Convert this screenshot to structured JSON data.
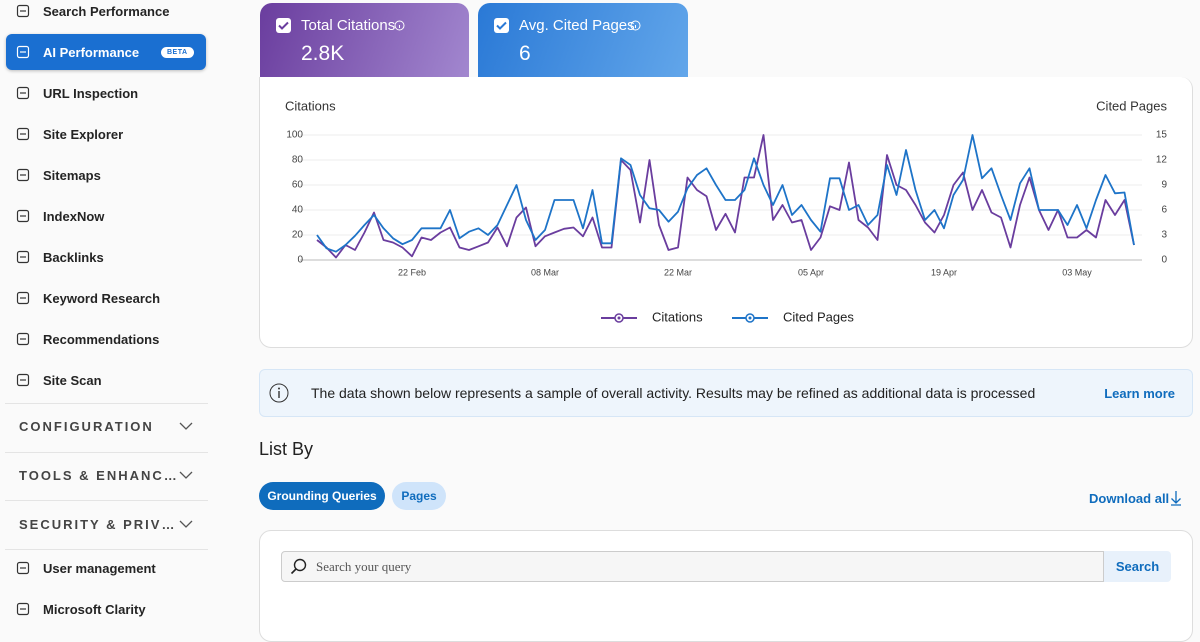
{
  "nav": {
    "items": [
      {
        "label": "Search Performance"
      },
      {
        "label": "AI Performance",
        "badge": "BETA",
        "active": true
      },
      {
        "label": "URL Inspection"
      },
      {
        "label": "Site Explorer"
      },
      {
        "label": "Sitemaps"
      },
      {
        "label": "IndexNow"
      },
      {
        "label": "Backlinks"
      },
      {
        "label": "Keyword Research"
      },
      {
        "label": "Recommendations"
      },
      {
        "label": "Site Scan"
      }
    ],
    "sections": [
      "CONFIGURATION",
      "TOOLS & ENHANC…",
      "SECURITY & PRIV…"
    ],
    "footer_items": [
      "User management",
      "Microsoft Clarity"
    ]
  },
  "cards": [
    {
      "title": "Total Citations",
      "value": "2.8K"
    },
    {
      "title": "Avg. Cited Pages",
      "value": 6
    }
  ],
  "chart_data": {
    "type": "line",
    "y_label": "Citations",
    "y2_label": "Cited Pages",
    "categories": [
      null,
      null,
      null,
      null,
      null,
      null,
      null,
      null,
      null,
      null,
      "22 Feb",
      null,
      null,
      null,
      null,
      null,
      null,
      null,
      null,
      null,
      null,
      null,
      null,
      null,
      "08 Mar",
      null,
      null,
      null,
      null,
      null,
      null,
      null,
      null,
      null,
      null,
      null,
      null,
      null,
      "22 Mar",
      null,
      null,
      null,
      null,
      null,
      null,
      null,
      null,
      null,
      null,
      null,
      null,
      null,
      "05 Apr",
      null,
      null,
      null,
      null,
      null,
      null,
      null,
      null,
      null,
      null,
      null,
      null,
      null,
      "19 Apr",
      null,
      null,
      null,
      null,
      null,
      null,
      null,
      null,
      null,
      null,
      null,
      null,
      null,
      "03 May",
      null,
      null,
      null,
      null,
      null,
      null
    ],
    "series": [
      {
        "name": "Citations",
        "color": "#6a3d9e",
        "values": [
          16,
          10,
          2,
          12,
          8,
          22,
          38,
          16,
          14,
          10,
          3,
          18,
          16,
          22,
          26,
          10,
          8,
          11,
          14,
          26,
          11,
          34,
          42,
          11,
          19,
          22,
          25,
          26,
          19,
          34,
          10,
          10,
          80,
          72,
          30,
          80,
          28,
          8,
          10,
          66,
          56,
          51,
          24,
          37,
          22,
          66,
          66,
          100,
          32,
          44,
          30,
          32,
          8,
          18,
          43,
          40,
          78,
          32,
          26,
          16,
          84,
          60,
          56,
          44,
          30,
          22,
          36,
          60,
          70,
          40,
          56,
          38,
          34,
          10,
          44,
          66,
          40,
          24,
          40,
          18,
          18,
          24,
          18,
          48,
          36,
          48,
          12
        ]
      },
      {
        "name": "Cited Pages",
        "color": "#1e74c8",
        "axis": "y2",
        "values": [
          3,
          1.4,
          1,
          1.8,
          2.9,
          4.2,
          5.4,
          3.8,
          2.6,
          1.9,
          2.4,
          3.8,
          3.8,
          3.8,
          6,
          2.6,
          3.4,
          3.8,
          3,
          4.2,
          6.6,
          9,
          4.8,
          2.4,
          3.6,
          7.2,
          7.2,
          7.2,
          3.8,
          8.4,
          2,
          2,
          12.2,
          11.4,
          7.8,
          6.2,
          6,
          4.6,
          5.8,
          8.6,
          10.2,
          11,
          9,
          7.2,
          7.2,
          8.4,
          12.2,
          9,
          6.6,
          9,
          5.4,
          6.6,
          4.8,
          3.4,
          9.8,
          9.8,
          6,
          6.6,
          4.2,
          5.4,
          11.4,
          7.8,
          13.2,
          8.4,
          4.8,
          6,
          3.8,
          7.8,
          9.6,
          15,
          9.8,
          11,
          7.8,
          4.8,
          9.2,
          11,
          6,
          6,
          6,
          4.2,
          6.6,
          3.8,
          7.2,
          10.2,
          8,
          8.1,
          1.8
        ]
      }
    ],
    "ylim": [
      0,
      100
    ],
    "yticks": [
      0,
      20,
      40,
      60,
      80,
      100
    ],
    "y2lim": [
      0,
      15
    ],
    "y2ticks": [
      0,
      3,
      6,
      9,
      12,
      15
    ],
    "grid": true,
    "legend": "bottom"
  },
  "notice": {
    "text": "The data shown below represents a sample of overall activity. Results may be refined as additional data is processed",
    "link": "Learn more"
  },
  "list_by": {
    "title": "List By",
    "tabs": [
      "Grounding Queries",
      "Pages"
    ],
    "download": "Download all"
  },
  "search": {
    "placeholder": "Search your query",
    "button": "Search"
  }
}
